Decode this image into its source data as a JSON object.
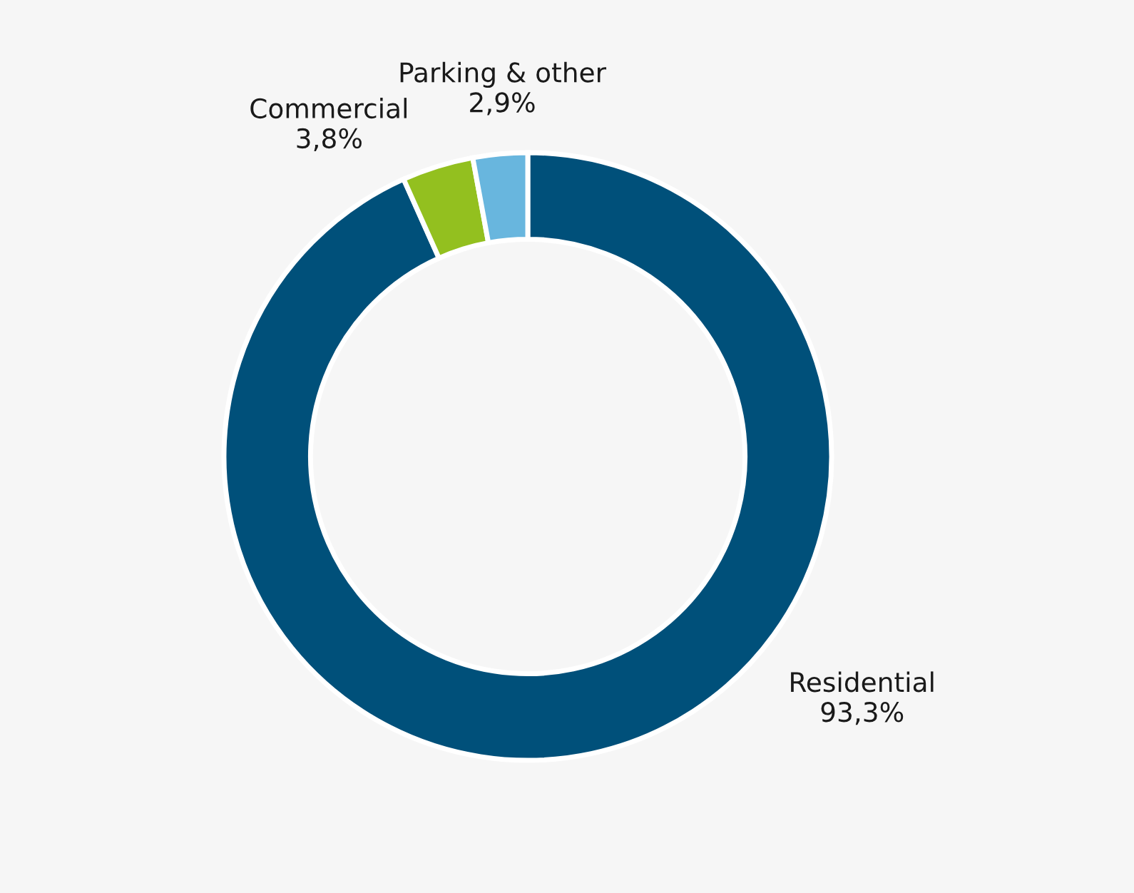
{
  "chart_data": {
    "type": "donut",
    "categories": [
      "Residential",
      "Commercial",
      "Parking & other"
    ],
    "values": [
      93.3,
      3.8,
      2.9
    ],
    "value_labels": [
      "93,3%",
      "3,8%",
      "2,9%"
    ],
    "colors": [
      "#00507a",
      "#93c01f",
      "#68b6de"
    ],
    "legend": false
  }
}
